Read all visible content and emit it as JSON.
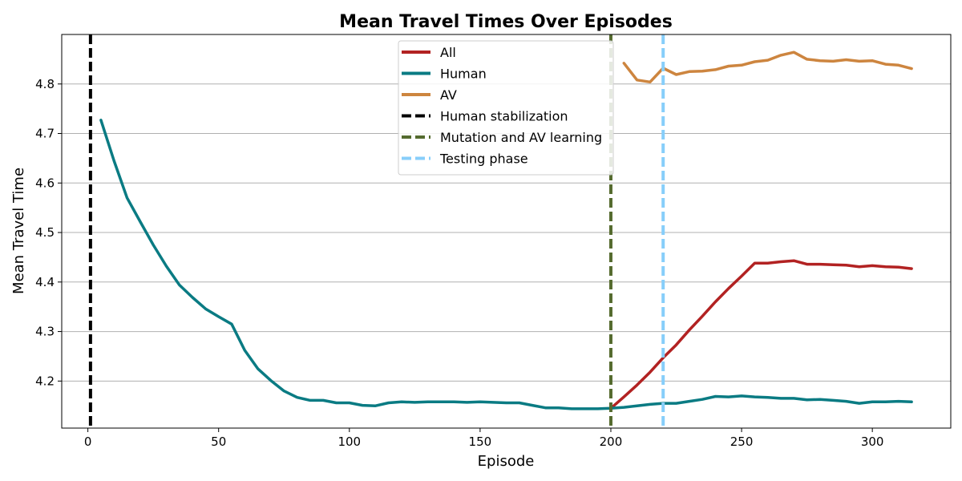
{
  "chart_data": {
    "type": "line",
    "title": "Mean Travel Times Over Episodes",
    "xlabel": "Episode",
    "ylabel": "Mean Travel Time",
    "xlim": [
      -10,
      330
    ],
    "ylim": [
      4.105,
      4.9
    ],
    "xticks": [
      0,
      50,
      100,
      150,
      200,
      250,
      300
    ],
    "yticks": [
      4.2,
      4.3,
      4.4,
      4.5,
      4.6,
      4.7,
      4.8
    ],
    "grid": "horizontal",
    "legend_position": "top-center",
    "series": [
      {
        "name": "All",
        "color": "#b22222",
        "x": [
          200,
          205,
          210,
          215,
          220,
          225,
          230,
          235,
          240,
          245,
          250,
          255,
          260,
          265,
          270,
          275,
          280,
          285,
          290,
          295,
          300,
          305,
          310,
          315
        ],
        "values": [
          4.145,
          4.168,
          4.192,
          4.218,
          4.247,
          4.273,
          4.303,
          4.331,
          4.36,
          4.387,
          4.412,
          4.438,
          4.438,
          4.441,
          4.443,
          4.436,
          4.436,
          4.435,
          4.434,
          4.431,
          4.433,
          4.431,
          4.43,
          4.427
        ]
      },
      {
        "name": "Human",
        "color": "#0a7b83",
        "x": [
          5,
          10,
          15,
          20,
          25,
          30,
          35,
          40,
          45,
          50,
          55,
          60,
          65,
          70,
          75,
          80,
          85,
          90,
          95,
          100,
          105,
          110,
          115,
          120,
          125,
          130,
          135,
          140,
          145,
          150,
          155,
          160,
          165,
          170,
          175,
          180,
          185,
          190,
          195,
          200,
          205,
          210,
          215,
          220,
          225,
          230,
          235,
          240,
          245,
          250,
          255,
          260,
          265,
          270,
          275,
          280,
          285,
          290,
          295,
          300,
          305,
          310,
          315
        ],
        "values": [
          4.727,
          4.645,
          4.57,
          4.522,
          4.475,
          4.432,
          4.394,
          4.369,
          4.346,
          4.33,
          4.315,
          4.262,
          4.225,
          4.201,
          4.18,
          4.167,
          4.161,
          4.161,
          4.156,
          4.156,
          4.151,
          4.15,
          4.156,
          4.158,
          4.157,
          4.158,
          4.158,
          4.158,
          4.157,
          4.158,
          4.157,
          4.156,
          4.156,
          4.151,
          4.146,
          4.146,
          4.144,
          4.144,
          4.144,
          4.145,
          4.147,
          4.15,
          4.153,
          4.155,
          4.155,
          4.159,
          4.163,
          4.169,
          4.168,
          4.17,
          4.168,
          4.167,
          4.165,
          4.165,
          4.162,
          4.163,
          4.161,
          4.159,
          4.155,
          4.158,
          4.158,
          4.159,
          4.158
        ]
      },
      {
        "name": "AV",
        "color": "#cd853f",
        "x": [
          205,
          210,
          215,
          220,
          225,
          230,
          235,
          240,
          245,
          250,
          255,
          260,
          265,
          270,
          275,
          280,
          285,
          290,
          295,
          300,
          305,
          310,
          315
        ],
        "values": [
          4.842,
          4.808,
          4.804,
          4.832,
          4.819,
          4.825,
          4.826,
          4.829,
          4.836,
          4.838,
          4.845,
          4.848,
          4.858,
          4.864,
          4.85,
          4.847,
          4.846,
          4.849,
          4.846,
          4.847,
          4.84,
          4.838,
          4.831
        ]
      }
    ],
    "vlines": [
      {
        "name": "Human stabilization",
        "x": 1,
        "color": "#000000"
      },
      {
        "name": "Mutation and AV learning",
        "x": 200,
        "color": "#556b2f"
      },
      {
        "name": "Testing phase",
        "x": 220,
        "color": "#87cefa"
      }
    ]
  }
}
